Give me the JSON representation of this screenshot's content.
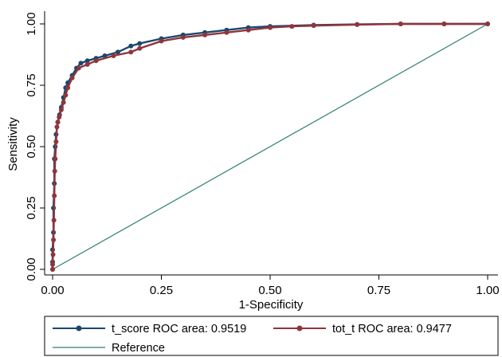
{
  "chart_data": {
    "type": "line",
    "title": "",
    "xlabel": "1-Specificity",
    "ylabel": "Sensitivity",
    "xlim": [
      0,
      1
    ],
    "ylim": [
      0,
      1
    ],
    "x_ticks": [
      "0.00",
      "0.25",
      "0.50",
      "0.75",
      "1.00"
    ],
    "y_ticks": [
      "0.00",
      "0.25",
      "0.50",
      "0.75",
      "1.00"
    ],
    "grid": false,
    "legend_position": "bottom",
    "series": [
      {
        "name": "t_score ROC area: 0.9519",
        "color": "#1a476f",
        "marker": "circle",
        "points": [
          [
            0,
            0
          ],
          [
            0,
            0.03
          ],
          [
            0,
            0.08
          ],
          [
            0.002,
            0.15
          ],
          [
            0.002,
            0.25
          ],
          [
            0.004,
            0.35
          ],
          [
            0.004,
            0.45
          ],
          [
            0.006,
            0.5
          ],
          [
            0.008,
            0.55
          ],
          [
            0.012,
            0.6
          ],
          [
            0.016,
            0.63
          ],
          [
            0.02,
            0.66
          ],
          [
            0.025,
            0.7
          ],
          [
            0.03,
            0.74
          ],
          [
            0.035,
            0.76
          ],
          [
            0.045,
            0.79
          ],
          [
            0.055,
            0.82
          ],
          [
            0.065,
            0.84
          ],
          [
            0.08,
            0.85
          ],
          [
            0.1,
            0.86
          ],
          [
            0.12,
            0.87
          ],
          [
            0.15,
            0.885
          ],
          [
            0.18,
            0.91
          ],
          [
            0.2,
            0.92
          ],
          [
            0.25,
            0.94
          ],
          [
            0.3,
            0.955
          ],
          [
            0.35,
            0.965
          ],
          [
            0.4,
            0.975
          ],
          [
            0.45,
            0.985
          ],
          [
            0.5,
            0.99
          ],
          [
            0.6,
            0.995
          ],
          [
            0.7,
            0.998
          ],
          [
            0.8,
            1
          ],
          [
            0.9,
            1
          ],
          [
            1,
            1
          ]
        ]
      },
      {
        "name": "tot_t ROC area: 0.9477",
        "color": "#90353b",
        "marker": "circle",
        "points": [
          [
            0,
            0
          ],
          [
            0,
            0.02
          ],
          [
            0.001,
            0.06
          ],
          [
            0.002,
            0.12
          ],
          [
            0.003,
            0.2
          ],
          [
            0.004,
            0.3
          ],
          [
            0.005,
            0.4
          ],
          [
            0.006,
            0.45
          ],
          [
            0.008,
            0.52
          ],
          [
            0.01,
            0.58
          ],
          [
            0.012,
            0.6
          ],
          [
            0.015,
            0.62
          ],
          [
            0.02,
            0.65
          ],
          [
            0.025,
            0.68
          ],
          [
            0.03,
            0.71
          ],
          [
            0.035,
            0.74
          ],
          [
            0.045,
            0.78
          ],
          [
            0.06,
            0.82
          ],
          [
            0.08,
            0.835
          ],
          [
            0.1,
            0.85
          ],
          [
            0.14,
            0.87
          ],
          [
            0.18,
            0.885
          ],
          [
            0.2,
            0.9
          ],
          [
            0.25,
            0.93
          ],
          [
            0.3,
            0.945
          ],
          [
            0.35,
            0.955
          ],
          [
            0.4,
            0.965
          ],
          [
            0.45,
            0.975
          ],
          [
            0.5,
            0.985
          ],
          [
            0.55,
            0.99
          ],
          [
            0.6,
            0.993
          ],
          [
            0.7,
            0.997
          ],
          [
            0.8,
            1
          ],
          [
            0.9,
            1
          ],
          [
            1,
            1
          ]
        ]
      },
      {
        "name": "Reference",
        "color": "#2d7f6f",
        "marker": "none",
        "points": [
          [
            0,
            0
          ],
          [
            1,
            1
          ]
        ]
      }
    ]
  }
}
